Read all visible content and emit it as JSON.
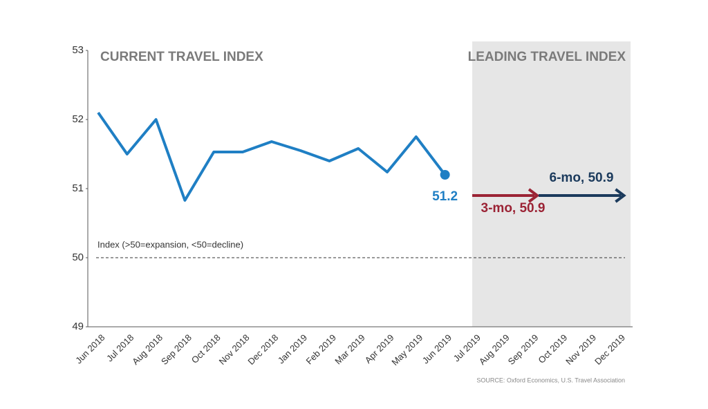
{
  "chart_data": {
    "type": "line",
    "title": "CURRENT TRAVEL INDEX",
    "shaded_label": "LEADING TRAVEL INDEX",
    "categories": [
      "Jun 2018",
      "Jul 2018",
      "Aug 2018",
      "Sep 2018",
      "Oct 2018",
      "Nov 2018",
      "Dec 2018",
      "Jan 2019",
      "Feb 2019",
      "Mar 2019",
      "Apr 2019",
      "May 2019",
      "Jun 2019",
      "Jul 2019",
      "Aug 2019",
      "Sep 2019",
      "Oct 2019",
      "Nov 2019",
      "Dec 2019"
    ],
    "series": [
      {
        "name": "Current Travel Index",
        "color": "#1f7fc4",
        "values": [
          52.1,
          51.5,
          52.0,
          50.83,
          51.53,
          51.53,
          51.68,
          51.55,
          51.4,
          51.58,
          51.24,
          51.75,
          51.2,
          null,
          null,
          null,
          null,
          null,
          null
        ]
      }
    ],
    "forecasts": [
      {
        "label": "3-mo, 50.9",
        "value": 50.9,
        "color": "#9b2335"
      },
      {
        "label": "6-mo, 50.9",
        "value": 50.9,
        "color": "#1b3a5c"
      }
    ],
    "reference": {
      "value": 50,
      "label": "Index (>50=expansion, <50=decline)"
    },
    "ylim": [
      49,
      53
    ],
    "yticks": [
      49,
      50,
      51,
      52,
      53
    ],
    "source": "SOURCE: Oxford Economics, U.S. Travel Association"
  }
}
